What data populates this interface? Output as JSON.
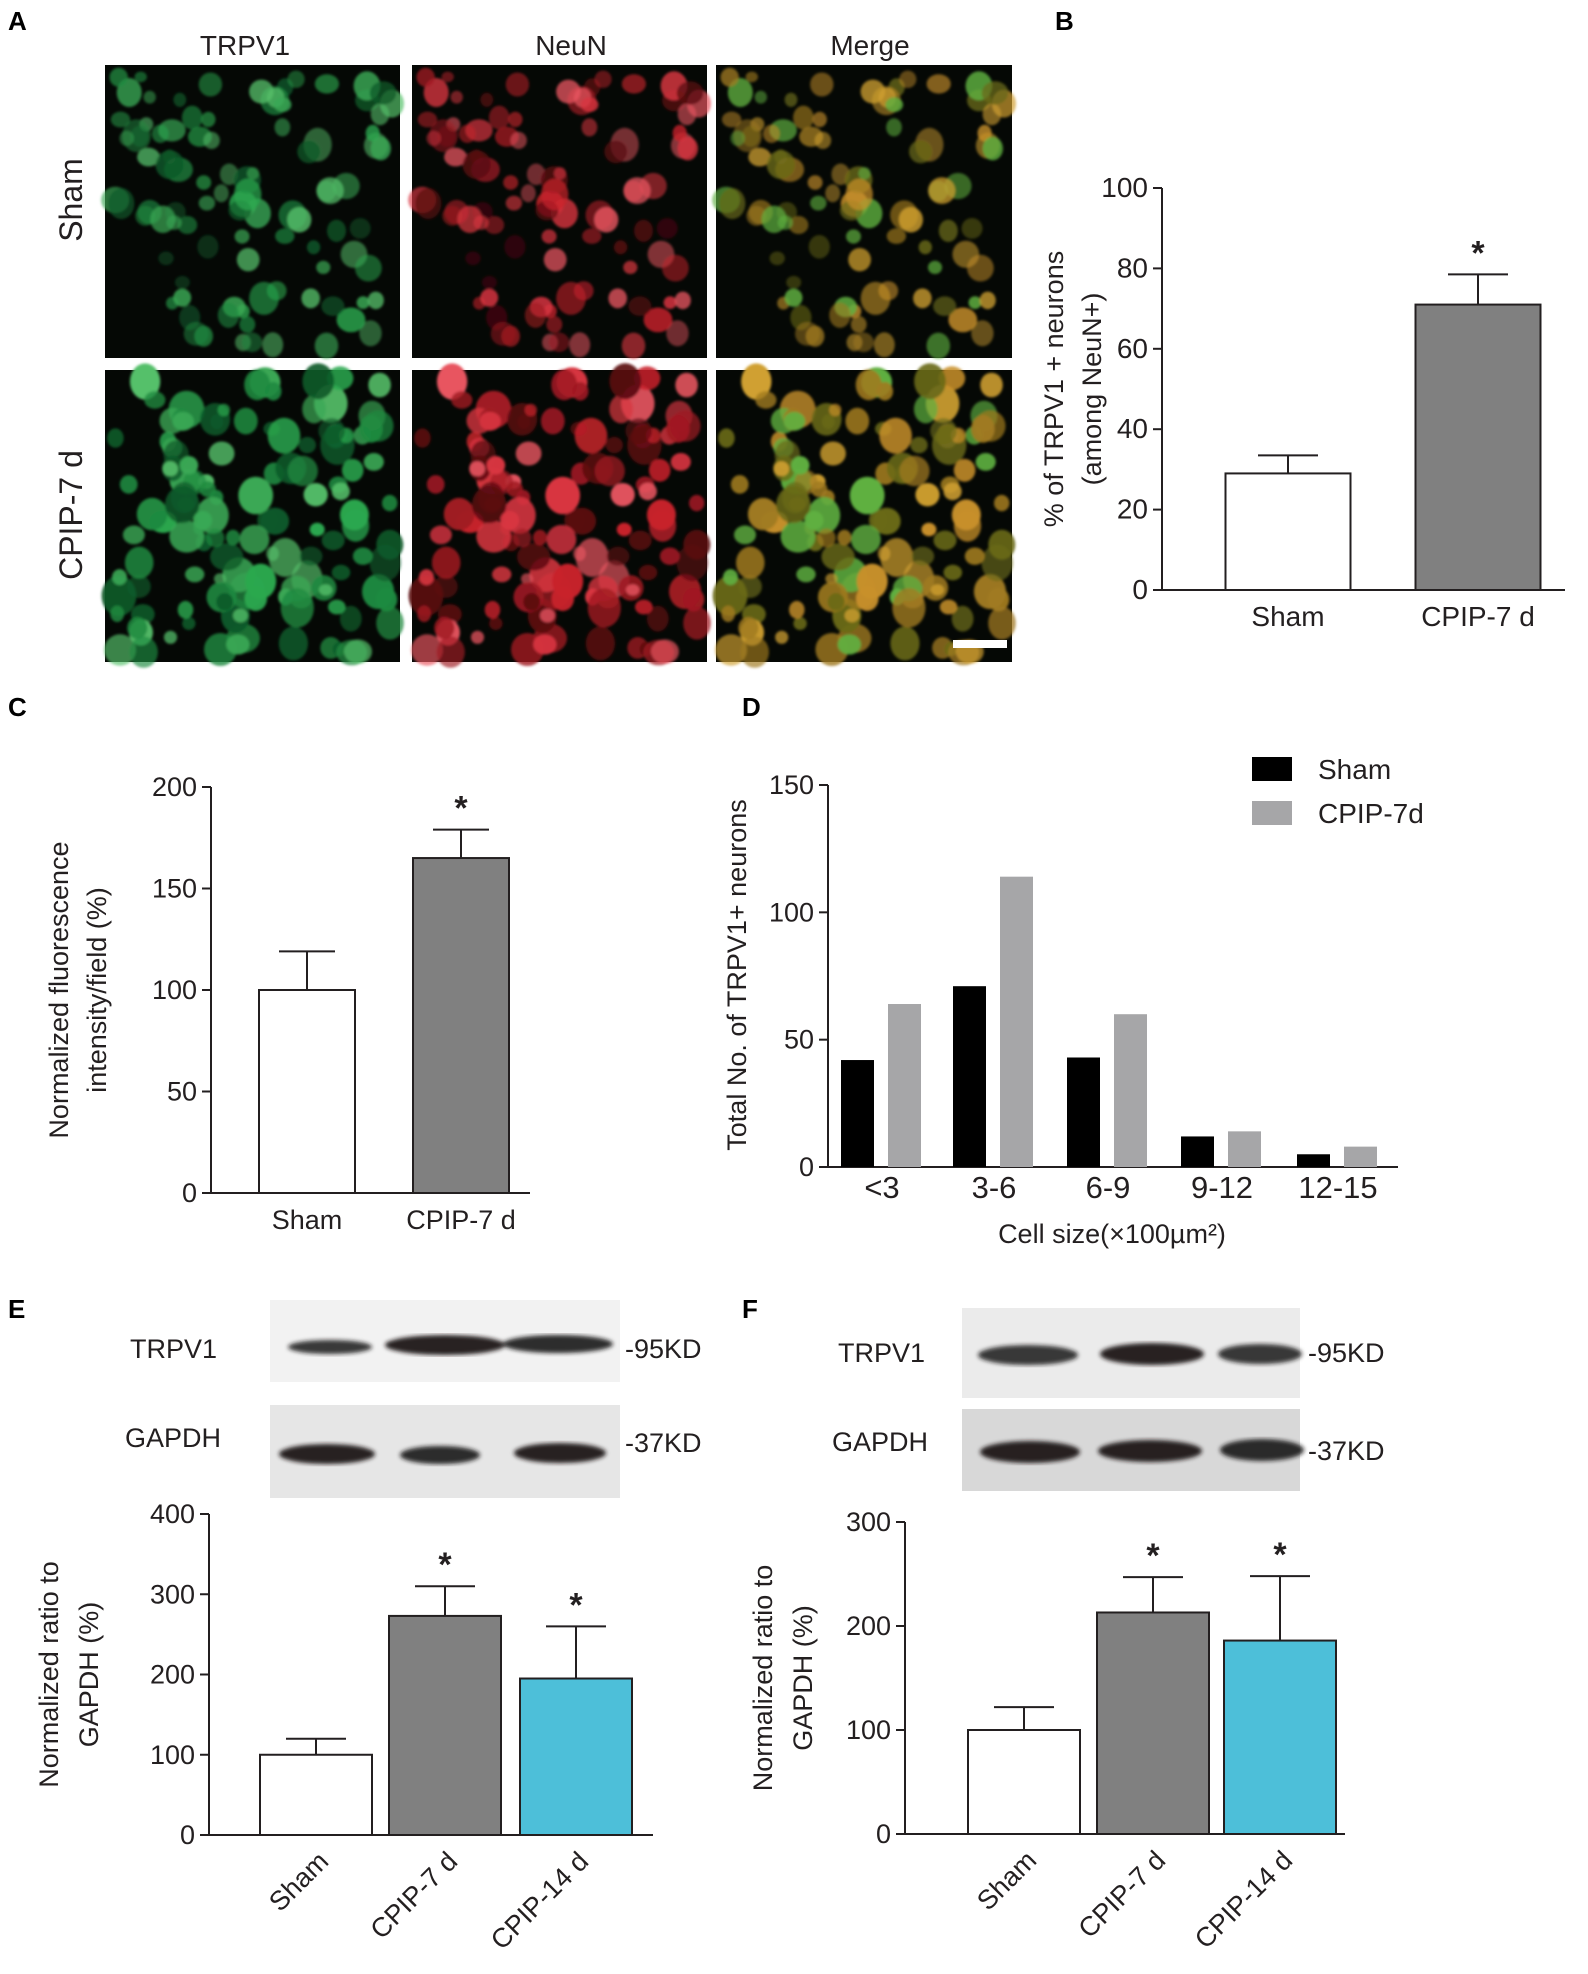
{
  "colors": {
    "sham_bar": "#ffffff",
    "cpip7_bar": "#808080",
    "cpip14_bar": "#4dbfd9",
    "legend_sham": "#000000",
    "legend_cpip": "#a6a6a8",
    "trpv1_stain": "#2fbf5a",
    "neun_stain": "#d9262e",
    "merge_stain": "#c8b030"
  },
  "panels": {
    "A": {
      "label": "A",
      "col_headers": [
        "TRPV1",
        "NeuN",
        "Merge"
      ],
      "row_labels": [
        "Sham",
        "CPIP-7 d"
      ]
    },
    "B": {
      "label": "B"
    },
    "C": {
      "label": "C"
    },
    "D": {
      "label": "D"
    },
    "E": {
      "label": "E",
      "blot_rows": [
        {
          "name": "TRPV1",
          "size": "-95KD"
        },
        {
          "name": "GAPDH",
          "size": "-37KD"
        }
      ]
    },
    "F": {
      "label": "F",
      "blot_rows": [
        {
          "name": "TRPV1",
          "size": "-95KD"
        },
        {
          "name": "GAPDH",
          "size": "-37KD"
        }
      ]
    }
  },
  "chart_data": [
    {
      "panel": "B",
      "type": "bar",
      "categories": [
        "Sham",
        "CPIP-7 d"
      ],
      "values": [
        29,
        71
      ],
      "errors": [
        4.5,
        7.5
      ],
      "significance": [
        "",
        "*"
      ],
      "ylabel_lines": [
        "% of TRPV1 + neurons",
        "(among NeuN+)"
      ],
      "ylim": [
        0,
        100
      ],
      "yticks": [
        0,
        20,
        40,
        60,
        80,
        100
      ]
    },
    {
      "panel": "C",
      "type": "bar",
      "categories": [
        "Sham",
        "CPIP-7 d"
      ],
      "values": [
        100,
        165
      ],
      "errors": [
        19,
        14
      ],
      "significance": [
        "",
        "*"
      ],
      "ylabel_lines": [
        "Normalized fluorescence",
        "intensity/field (%)"
      ],
      "ylim": [
        0,
        200
      ],
      "yticks": [
        0,
        50,
        100,
        150,
        200
      ]
    },
    {
      "panel": "D",
      "type": "bar",
      "categories": [
        "<3",
        "3-6",
        "6-9",
        "9-12",
        "12-15"
      ],
      "series": [
        {
          "name": "Sham",
          "values": [
            42,
            71,
            43,
            12,
            5
          ]
        },
        {
          "name": "CPIP-7d",
          "values": [
            64,
            114,
            60,
            14,
            8
          ]
        }
      ],
      "xlabel": "Cell size(×100µm²)",
      "ylabel": "Total No. of  TRPV1+ neurons",
      "ylim": [
        0,
        150
      ],
      "yticks": [
        0,
        50,
        100,
        150
      ],
      "legend": "top-right"
    },
    {
      "panel": "E",
      "type": "bar",
      "categories": [
        "Sham",
        "CPIP-7 d",
        "CPIP-14 d"
      ],
      "values": [
        100,
        273,
        195
      ],
      "errors": [
        20,
        37,
        65
      ],
      "significance": [
        "",
        "*",
        "*"
      ],
      "ylabel_lines": [
        "Normalized ratio to",
        "GAPDH (%)"
      ],
      "ylim": [
        0,
        400
      ],
      "yticks": [
        0,
        100,
        200,
        300,
        400
      ]
    },
    {
      "panel": "F",
      "type": "bar",
      "categories": [
        "Sham",
        "CPIP-7 d",
        "CPIP-14 d"
      ],
      "values": [
        100,
        213,
        186
      ],
      "errors": [
        22,
        34,
        62
      ],
      "significance": [
        "",
        "*",
        "*"
      ],
      "ylabel_lines": [
        "Normalized ratio to",
        "GAPDH (%)"
      ],
      "ylim": [
        0,
        300
      ],
      "yticks": [
        0,
        100,
        200,
        300
      ]
    }
  ]
}
